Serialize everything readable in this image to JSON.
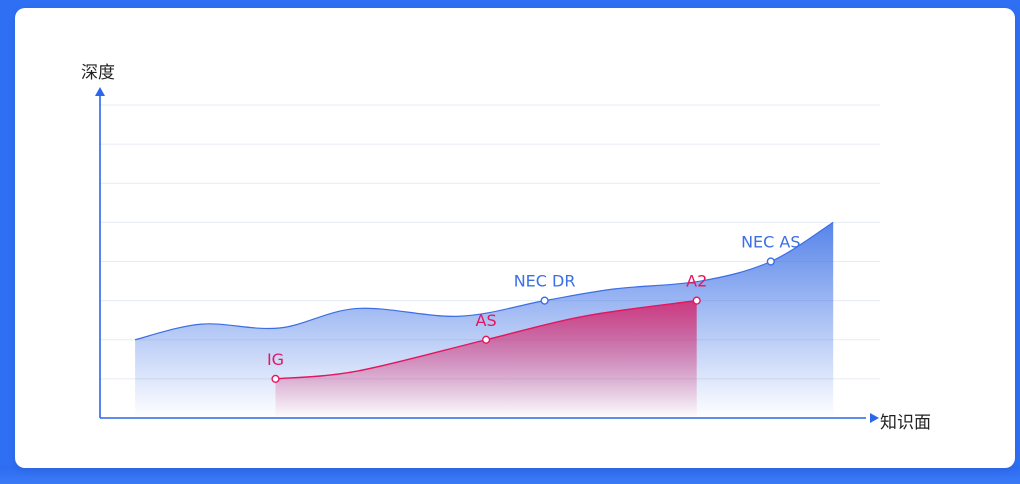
{
  "chart_data": {
    "type": "area",
    "xlabel": "知识面",
    "ylabel": "深度",
    "grid": true,
    "colors": {
      "blue": "#3a6fe6",
      "pink": "#e4165f",
      "axis": "#2c66ea"
    },
    "series": [
      {
        "points": [
          {
            "label": "NEC DR",
            "x": 0.57,
            "y": 3.0
          },
          {
            "label": "NEC AS",
            "x": 0.86,
            "y": 4.0
          }
        ],
        "curve": [
          {
            "x": 0.045,
            "y": 2.0
          },
          {
            "x": 0.13,
            "y": 2.4
          },
          {
            "x": 0.23,
            "y": 2.3
          },
          {
            "x": 0.33,
            "y": 2.8
          },
          {
            "x": 0.46,
            "y": 2.6
          },
          {
            "x": 0.57,
            "y": 3.0
          },
          {
            "x": 0.66,
            "y": 3.3
          },
          {
            "x": 0.77,
            "y": 3.5
          },
          {
            "x": 0.86,
            "y": 4.0
          },
          {
            "x": 0.94,
            "y": 5.0
          }
        ]
      },
      {
        "points": [
          {
            "label": "IG",
            "x": 0.225,
            "y": 1.0
          },
          {
            "label": "AS",
            "x": 0.495,
            "y": 2.0
          },
          {
            "label": "A2",
            "x": 0.765,
            "y": 3.0
          }
        ],
        "curve": [
          {
            "x": 0.225,
            "y": 1.0
          },
          {
            "x": 0.33,
            "y": 1.2
          },
          {
            "x": 0.495,
            "y": 2.0
          },
          {
            "x": 0.62,
            "y": 2.6
          },
          {
            "x": 0.765,
            "y": 3.0
          }
        ]
      }
    ],
    "xlim": [
      0,
      1
    ],
    "ylim": [
      0,
      8
    ]
  }
}
